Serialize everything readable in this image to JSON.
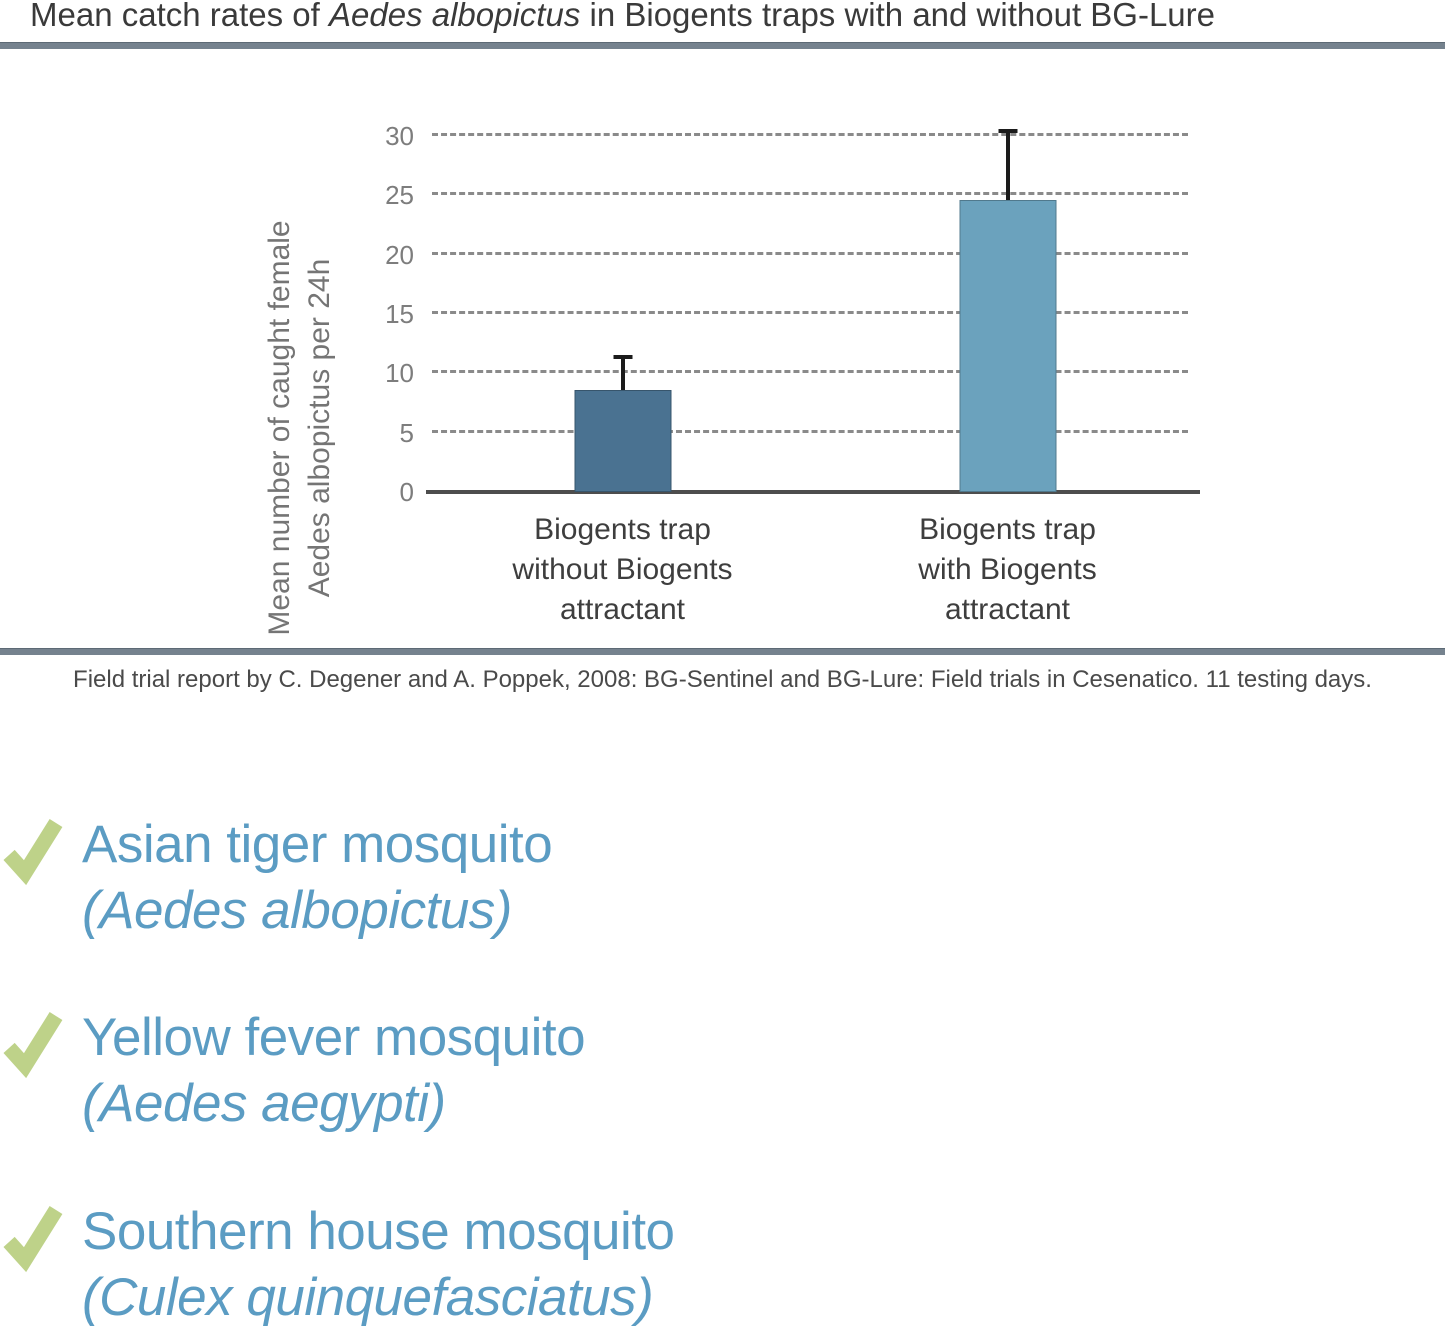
{
  "page": {
    "title": {
      "prefix": "Mean catch rates of ",
      "italic": "Aedes albopictus",
      "suffix": " in Biogents traps with and without BG-Lure"
    },
    "citation": "Field trial report by C. Degener and A. Poppek, 2008: BG-Sentinel and BG-Lure: Field trials in Cesenatico. 11 testing days."
  },
  "chart_data": {
    "type": "bar",
    "title": "Mean catch rates of Aedes albopictus in Biogents traps with and without BG-Lure",
    "ylabel": "Mean number of caught female Aedes albopictus per 24h",
    "ylabel_lines": [
      "Mean number of caught female",
      "Aedes albopictus per 24h"
    ],
    "categories": [
      [
        "Biogents trap",
        "without Biogents",
        "attractant"
      ],
      [
        "Biogents trap",
        "with Biogents",
        "attractant"
      ]
    ],
    "values": [
      8.6,
      24.6
    ],
    "error_upper": [
      11.2,
      30.2
    ],
    "yticks": [
      0,
      5,
      10,
      15,
      20,
      25,
      30
    ],
    "ylim": [
      0,
      30
    ],
    "xlabel": "",
    "grid": "horizontal-dashed",
    "legend": "none",
    "bar_colors": [
      "#4a7291",
      "#6ba2bd"
    ],
    "error_color": "#1b1b1b"
  },
  "species_list": {
    "check_icon": "checkmark-icon",
    "check_color": "#bed289",
    "text_color": "#5b9cc3",
    "items": [
      {
        "common": "Asian tiger mosquito",
        "latin": "(Aedes albopictus)"
      },
      {
        "common": "Yellow fever mosquito",
        "latin": "(Aedes aegypti)"
      },
      {
        "common": "Southern house mosquito",
        "latin": "(Culex quinquefasciatus)"
      }
    ]
  },
  "colors": {
    "divider": "#75828e",
    "title_text": "#3a3a3a",
    "axis_text": "#7d7d7d"
  }
}
